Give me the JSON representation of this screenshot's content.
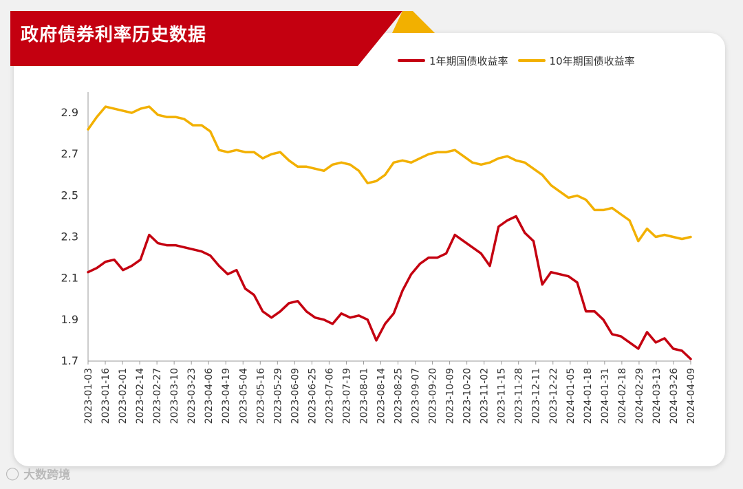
{
  "header": {
    "title": "政府债券利率历史数据",
    "banner_color": "#c40010",
    "accent_color": "#f2b000"
  },
  "watermark": {
    "icon": "logo-icon",
    "text": "大数跨境"
  },
  "chart_data": {
    "type": "line",
    "title": "政府债券利率历史数据",
    "xlabel": "",
    "ylabel": "",
    "ylim": [
      1.7,
      3.0
    ],
    "yticks": [
      "1.7",
      "1.9",
      "2.1",
      "2.3",
      "2.5",
      "2.7",
      "2.9"
    ],
    "x_ticks": [
      "2023-01-03",
      "2023-01-16",
      "2023-02-01",
      "2023-02-14",
      "2023-02-27",
      "2023-03-10",
      "2023-03-23",
      "2023-04-06",
      "2023-04-19",
      "2023-05-04",
      "2023-05-16",
      "2023-05-29",
      "2023-06-09",
      "2023-06-25",
      "2023-07-06",
      "2023-07-19",
      "2023-08-01",
      "2023-08-14",
      "2023-08-25",
      "2023-09-07",
      "2023-09-20",
      "2023-10-09",
      "2023-10-20",
      "2023-11-02",
      "2023-11-15",
      "2023-11-28",
      "2023-12-11",
      "2023-12-22",
      "2024-01-05",
      "2024-01-18",
      "2024-01-31",
      "2024-02-18",
      "2024-02-29",
      "2024-03-13",
      "2024-03-26",
      "2024-04-09"
    ],
    "grid": false,
    "legend_position": "top-right",
    "series": [
      {
        "name": "1年期国债收益率",
        "color": "#c40010",
        "values": [
          2.13,
          2.15,
          2.18,
          2.19,
          2.14,
          2.16,
          2.19,
          2.31,
          2.27,
          2.26,
          2.26,
          2.25,
          2.24,
          2.23,
          2.21,
          2.16,
          2.12,
          2.14,
          2.05,
          2.02,
          1.94,
          1.91,
          1.94,
          1.98,
          1.99,
          1.94,
          1.91,
          1.9,
          1.88,
          1.93,
          1.91,
          1.92,
          1.9,
          1.8,
          1.88,
          1.93,
          2.04,
          2.12,
          2.17,
          2.2,
          2.2,
          2.22,
          2.31,
          2.28,
          2.25,
          2.22,
          2.16,
          2.35,
          2.38,
          2.4,
          2.32,
          2.28,
          2.07,
          2.13,
          2.12,
          2.11,
          2.08,
          1.94,
          1.94,
          1.9,
          1.83,
          1.82,
          1.79,
          1.76,
          1.84,
          1.79,
          1.81,
          1.76,
          1.75,
          1.71
        ]
      },
      {
        "name": "10年期国债收益率",
        "color": "#f2b000",
        "values": [
          2.82,
          2.88,
          2.93,
          2.92,
          2.91,
          2.9,
          2.92,
          2.93,
          2.89,
          2.88,
          2.88,
          2.87,
          2.84,
          2.84,
          2.81,
          2.72,
          2.71,
          2.72,
          2.71,
          2.71,
          2.68,
          2.7,
          2.71,
          2.67,
          2.64,
          2.64,
          2.63,
          2.62,
          2.65,
          2.66,
          2.65,
          2.62,
          2.56,
          2.57,
          2.6,
          2.66,
          2.67,
          2.66,
          2.68,
          2.7,
          2.71,
          2.71,
          2.72,
          2.69,
          2.66,
          2.65,
          2.66,
          2.68,
          2.69,
          2.67,
          2.66,
          2.63,
          2.6,
          2.55,
          2.52,
          2.49,
          2.5,
          2.48,
          2.43,
          2.43,
          2.44,
          2.41,
          2.38,
          2.28,
          2.34,
          2.3,
          2.31,
          2.3,
          2.29,
          2.3
        ]
      }
    ]
  }
}
